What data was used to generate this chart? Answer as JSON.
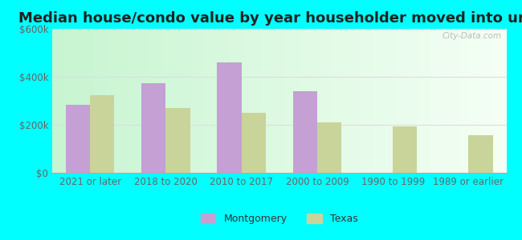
{
  "title": "Median house/condo value by year householder moved into unit",
  "categories": [
    "2021 or later",
    "2018 to 2020",
    "2010 to 2017",
    "2000 to 2009",
    "1990 to 1999",
    "1989 or earlier"
  ],
  "montgomery_values": [
    285000,
    375000,
    460000,
    340000,
    null,
    null
  ],
  "texas_values": [
    325000,
    270000,
    250000,
    210000,
    193000,
    158000
  ],
  "montgomery_color": "#c4a0d4",
  "texas_color": "#c8d49a",
  "bar_width": 0.32,
  "ylim": [
    0,
    600000
  ],
  "yticks": [
    0,
    200000,
    400000,
    600000
  ],
  "ytick_labels": [
    "$0",
    "$200k",
    "$400k",
    "$600k"
  ],
  "outer_bg": "#00ffff",
  "plot_bg_left": "#c8eec8",
  "plot_bg_right": "#f5fff5",
  "watermark": "City-Data.com",
  "legend_montgomery": "Montgomery",
  "legend_texas": "Texas",
  "title_fontsize": 13,
  "axis_fontsize": 8.5,
  "legend_fontsize": 9,
  "tick_color": "#666666"
}
